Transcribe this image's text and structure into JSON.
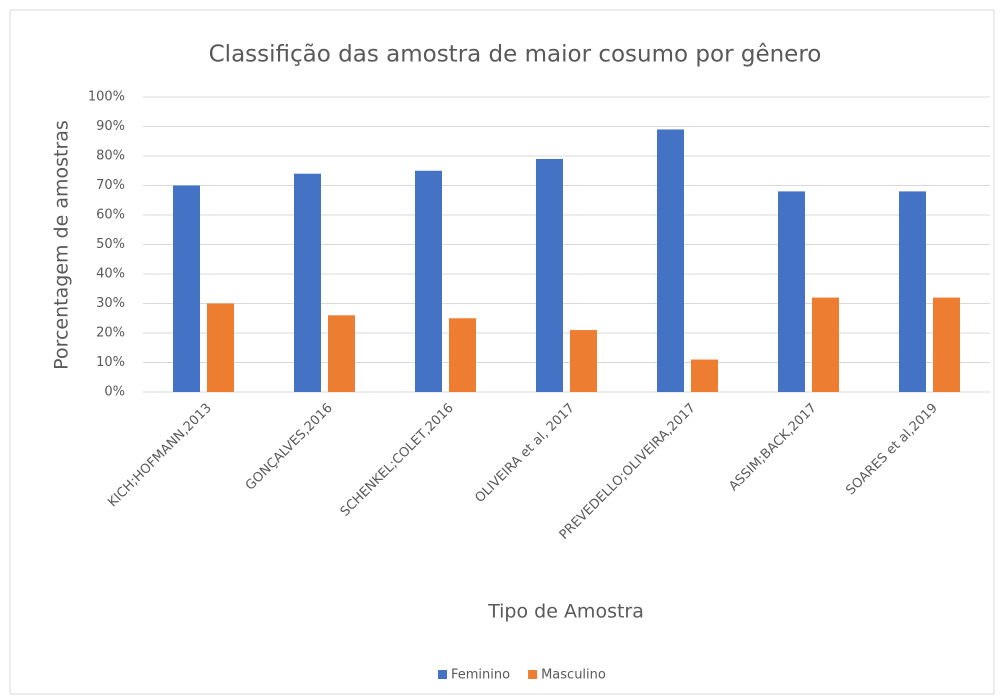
{
  "chart_data": {
    "type": "bar",
    "title": "Classifição das amostra de maior cosumo por gênero",
    "x_label": "Tipo de Amostra",
    "y_label": "Porcentagem de amostras",
    "categories": [
      "KICH;HOFMANN,2013",
      "GONÇALVES,2016",
      "SCHENKEL;COLET,2016",
      "OLIVEIRA et al, 2017",
      "PREVEDELLO;OLIVEIRA,2017",
      "ASSIM;BACK,2017",
      "SOARES et al,2019"
    ],
    "series": [
      {
        "name": "Feminino",
        "color": "#4472c4",
        "values": [
          70,
          74,
          75,
          79,
          89,
          68,
          68
        ]
      },
      {
        "name": "Masculino",
        "color": "#ed7d31",
        "values": [
          30,
          26,
          25,
          21,
          11,
          32,
          32
        ]
      }
    ],
    "ylim": [
      0,
      100
    ],
    "yticks": [
      {
        "value": 0,
        "label": "0%"
      },
      {
        "value": 10,
        "label": "10%"
      },
      {
        "value": 20,
        "label": "20%"
      },
      {
        "value": 30,
        "label": "30%"
      },
      {
        "value": 40,
        "label": "40%"
      },
      {
        "value": 50,
        "label": "50%"
      },
      {
        "value": 60,
        "label": "60%"
      },
      {
        "value": 70,
        "label": "70%"
      },
      {
        "value": 80,
        "label": "80%"
      },
      {
        "value": 90,
        "label": "90%"
      },
      {
        "value": 100,
        "label": "100%"
      }
    ],
    "grid": true,
    "legend": "bottom"
  }
}
